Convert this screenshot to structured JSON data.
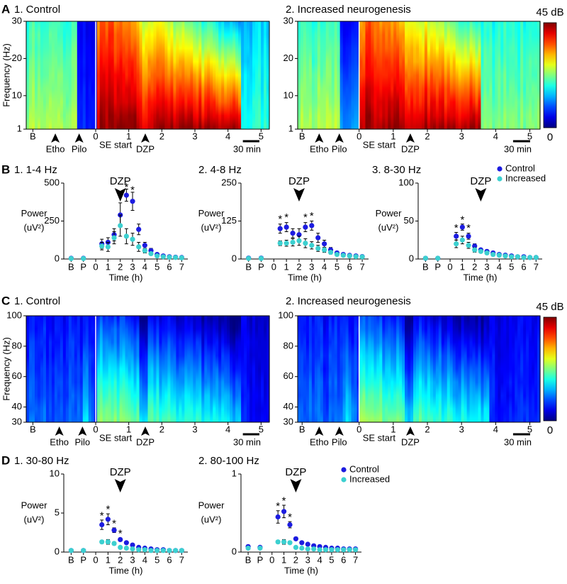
{
  "chart_data": [
    {
      "type": "spectrogram",
      "panel": "A",
      "title": "1. Control",
      "ylabel": "Frequency (Hz)",
      "ylim": [
        1,
        30
      ],
      "yticks": [
        1,
        10,
        20,
        30
      ],
      "xlim": [
        -2.1,
        5.25
      ],
      "xticks": [
        {
          "value": -1.9,
          "label": "B"
        },
        0,
        1,
        2,
        3,
        4,
        5
      ],
      "annotations": [
        {
          "text": "Etho",
          "x": -1.22
        },
        {
          "text": "Pilo",
          "x": -0.5
        },
        {
          "text": "DZP",
          "x": 1.5
        }
      ],
      "marker_label": "SE start",
      "scalebar": {
        "label": "30 min",
        "length": 0.5
      }
    },
    {
      "type": "spectrogram",
      "title": "2. Increased neurogenesis",
      "ylim": [
        1,
        30
      ],
      "yticks": [
        1,
        10,
        20,
        30
      ],
      "xlim": [
        -1.8,
        5.3
      ],
      "xticks": [
        {
          "value": -1.67,
          "label": "B"
        },
        0,
        1,
        2,
        3,
        4,
        5
      ],
      "annotations": [
        {
          "text": "Etho",
          "x": -1.17
        },
        {
          "text": "Pilo",
          "x": -0.58
        },
        {
          "text": "DZP",
          "x": 1.5
        }
      ],
      "marker_label": "SE start",
      "scalebar": {
        "label": "30 min",
        "length": 0.5
      },
      "colorbar": {
        "max_label": "45 dB",
        "min_label": "0"
      }
    },
    {
      "type": "errorbar",
      "panel": "B",
      "title": "1. 1-4 Hz",
      "ylabel": [
        "Power",
        "(uV²)"
      ],
      "xlabel": "Time (h)",
      "ylim": [
        0,
        500
      ],
      "yticks": [
        0,
        250,
        500
      ],
      "xlim": [
        -2.6,
        7.5
      ],
      "xticks": [
        {
          "value": -2,
          "label": "B"
        },
        {
          "value": -1,
          "label": "P"
        },
        0,
        1,
        2,
        3,
        4,
        5,
        6,
        7
      ],
      "x": [
        -2,
        -1,
        0.5,
        1,
        1.5,
        2,
        2.5,
        3,
        3.5,
        4,
        4.5,
        5,
        5.5,
        6,
        6.5,
        7
      ],
      "series": [
        {
          "color": "#1c1ce0",
          "values": [
            5,
            5,
            100,
            110,
            160,
            290,
            420,
            380,
            195,
            90,
            55,
            30,
            20,
            15,
            12,
            10
          ],
          "errors": [
            2,
            2,
            30,
            30,
            40,
            80,
            40,
            60,
            35,
            20,
            15,
            10,
            5,
            5,
            4,
            3
          ]
        },
        {
          "color": "#3cd0d0",
          "values": [
            3,
            3,
            85,
            80,
            140,
            220,
            150,
            130,
            80,
            55,
            35,
            20,
            15,
            12,
            10,
            8
          ],
          "errors": [
            2,
            2,
            25,
            30,
            40,
            70,
            50,
            40,
            30,
            15,
            10,
            6,
            5,
            4,
            3,
            3
          ]
        }
      ],
      "annotations": [
        {
          "text": "DZP",
          "x": 2
        },
        {
          "text": "*",
          "x": 2.5,
          "y": 470
        },
        {
          "text": "*",
          "x": 3,
          "y": 450
        }
      ]
    },
    {
      "type": "errorbar",
      "title": "2. 4-8 Hz",
      "ylabel": [
        "Power",
        "(uV²)"
      ],
      "xlabel": "Time (h)",
      "ylim": [
        0,
        250
      ],
      "yticks": [
        0,
        125,
        250
      ],
      "xlim": [
        -2.6,
        7.5
      ],
      "xticks": [
        {
          "value": -2,
          "label": "B"
        },
        {
          "value": -1,
          "label": "P"
        },
        0,
        1,
        2,
        3,
        4,
        5,
        6,
        7
      ],
      "x": [
        -2,
        -1,
        0.5,
        1,
        1.5,
        2,
        2.5,
        3,
        3.5,
        4,
        4.5,
        5,
        5.5,
        6,
        6.5,
        7
      ],
      "series": [
        {
          "color": "#1c1ce0",
          "values": [
            3,
            3,
            100,
            105,
            85,
            80,
            105,
            110,
            70,
            50,
            30,
            20,
            15,
            12,
            10,
            8
          ],
          "errors": [
            2,
            2,
            15,
            15,
            15,
            20,
            15,
            15,
            15,
            12,
            8,
            5,
            4,
            3,
            3,
            2
          ]
        },
        {
          "color": "#3cd0d0",
          "values": [
            2,
            2,
            52,
            52,
            55,
            60,
            52,
            45,
            35,
            30,
            22,
            15,
            12,
            10,
            8,
            7
          ],
          "errors": [
            1,
            1,
            8,
            10,
            12,
            15,
            15,
            12,
            10,
            8,
            6,
            4,
            3,
            3,
            2,
            2
          ]
        }
      ],
      "annotations": [
        {
          "text": "DZP",
          "x": 2
        },
        {
          "text": "*",
          "x": 0.5,
          "y": 130
        },
        {
          "text": "*",
          "x": 1,
          "y": 135
        },
        {
          "text": "*",
          "x": 2.5,
          "y": 135
        },
        {
          "text": "*",
          "x": 3,
          "y": 140
        }
      ]
    },
    {
      "type": "errorbar",
      "title": "3. 8-30 Hz",
      "ylabel": [
        "Power",
        "(uV²)"
      ],
      "xlabel": "Time (h)",
      "ylim": [
        0,
        100
      ],
      "yticks": [
        0,
        50,
        100
      ],
      "xlim": [
        -2.6,
        7.5
      ],
      "xticks": [
        {
          "value": -2,
          "label": "B"
        },
        {
          "value": -1,
          "label": "P"
        },
        0,
        1,
        2,
        3,
        4,
        5,
        6,
        7
      ],
      "x": [
        -2,
        -1,
        0.5,
        1,
        1.5,
        2,
        2.5,
        3,
        3.5,
        4,
        4.5,
        5,
        5.5,
        6,
        6.5,
        7
      ],
      "series": [
        {
          "name": "Control",
          "color": "#1c1ce0",
          "values": [
            1,
            1,
            30,
            42,
            30,
            17,
            12,
            10,
            8,
            6,
            5,
            4,
            3,
            3,
            2,
            2
          ],
          "errors": [
            1,
            1,
            5,
            4,
            4,
            3,
            2,
            2,
            2,
            1,
            1,
            1,
            1,
            1,
            1,
            1
          ]
        },
        {
          "name": "Increased",
          "color": "#3cd0d0",
          "values": [
            1,
            1,
            20,
            25,
            18,
            12,
            10,
            8,
            6,
            5,
            4,
            3,
            3,
            2,
            2,
            2
          ],
          "errors": [
            1,
            1,
            5,
            5,
            4,
            3,
            2,
            2,
            2,
            1,
            1,
            1,
            1,
            1,
            1,
            1
          ]
        }
      ],
      "annotations": [
        {
          "text": "DZP",
          "x": 2.5
        },
        {
          "text": "*",
          "x": 0.5,
          "y": 40
        },
        {
          "text": "*",
          "x": 1,
          "y": 51
        },
        {
          "text": "*",
          "x": 1.5,
          "y": 40
        }
      ]
    },
    {
      "type": "spectrogram",
      "panel": "C",
      "title": "1. Control",
      "ylabel": "Frequency (Hz)",
      "ylim": [
        30,
        100
      ],
      "yticks": [
        30,
        40,
        60,
        80,
        100
      ],
      "xlim": [
        -2.1,
        5.25
      ],
      "xticks": [
        {
          "value": -1.9,
          "label": "B"
        },
        0,
        1,
        2,
        3,
        4,
        5
      ],
      "annotations": [
        {
          "text": "Etho",
          "x": -1.1
        },
        {
          "text": "Pilo",
          "x": -0.4
        },
        {
          "text": "DZP",
          "x": 1.5
        }
      ],
      "marker_label": "SE start",
      "scalebar": {
        "label": "30 min",
        "length": 0.5
      }
    },
    {
      "type": "spectrogram",
      "title": "2. Increased neurogenesis",
      "ylim": [
        30,
        100
      ],
      "yticks": [
        30,
        40,
        60,
        80,
        100
      ],
      "xlim": [
        -1.8,
        5.3
      ],
      "xticks": [
        {
          "value": -1.67,
          "label": "B"
        },
        0,
        1,
        2,
        3,
        4,
        5
      ],
      "annotations": [
        {
          "text": "Etho",
          "x": -1.17
        },
        {
          "text": "Pilo",
          "x": -0.58
        },
        {
          "text": "DZP",
          "x": 1.5
        }
      ],
      "marker_label": "SE start",
      "scalebar": {
        "label": "30 min",
        "length": 0.5
      },
      "colorbar": {
        "max_label": "45 dB",
        "min_label": "0"
      }
    },
    {
      "type": "errorbar",
      "panel": "D",
      "title": "1. 30-80 Hz",
      "ylabel": [
        "Power",
        "(uV²)"
      ],
      "xlabel": "Time (h)",
      "ylim": [
        0,
        10
      ],
      "yticks": [
        0,
        5,
        10
      ],
      "xlim": [
        -2.6,
        7.5
      ],
      "xticks": [
        {
          "value": -2,
          "label": "B"
        },
        {
          "value": -1,
          "label": "P"
        },
        0,
        1,
        2,
        3,
        4,
        5,
        6,
        7
      ],
      "x": [
        -2,
        -1,
        0.5,
        1,
        1.5,
        2,
        2.5,
        3,
        3.5,
        4,
        4.5,
        5,
        5.5,
        6,
        6.5,
        7
      ],
      "series": [
        {
          "color": "#1c1ce0",
          "values": [
            0.2,
            0.2,
            3.5,
            4.2,
            2.8,
            1.6,
            1.2,
            0.9,
            0.6,
            0.5,
            0.4,
            0.3,
            0.3,
            0.2,
            0.2,
            0.2
          ],
          "errors": [
            0.1,
            0.1,
            0.6,
            0.7,
            0.3,
            0.2,
            0.1,
            0.1,
            0.1,
            0.1,
            0.1,
            0.1,
            0.1,
            0.1,
            0.1,
            0.1
          ]
        },
        {
          "color": "#3cd0d0",
          "values": [
            0.2,
            0.2,
            1.3,
            1.3,
            1.1,
            0.6,
            0.5,
            0.4,
            0.3,
            0.3,
            0.2,
            0.2,
            0.2,
            0.2,
            0.2,
            0.2
          ],
          "errors": [
            0.1,
            0.1,
            0.2,
            0.3,
            0.2,
            0.1,
            0.1,
            0.1,
            0.1,
            0.1,
            0.1,
            0.1,
            0.1,
            0.1,
            0.1,
            0.1
          ]
        }
      ],
      "annotations": [
        {
          "text": "DZP",
          "x": 2
        },
        {
          "text": "*",
          "x": 0.5,
          "y": 4.6
        },
        {
          "text": "*",
          "x": 1,
          "y": 5.4
        },
        {
          "text": "*",
          "x": 1.5,
          "y": 3.6
        },
        {
          "text": "*",
          "x": 2,
          "y": 2.3
        }
      ]
    },
    {
      "type": "errorbar",
      "title": "2. 80-100 Hz",
      "ylabel": [
        "Power",
        "(uV²)"
      ],
      "xlabel": "Time (h)",
      "ylim": [
        0,
        1
      ],
      "yticks": [
        0,
        1
      ],
      "xlim": [
        -2.6,
        7.5
      ],
      "xticks": [
        {
          "value": -2,
          "label": "B"
        },
        {
          "value": -1,
          "label": "P"
        },
        0,
        1,
        2,
        3,
        4,
        5,
        6,
        7
      ],
      "x": [
        -2,
        -1,
        0.5,
        1,
        1.5,
        2,
        2.5,
        3,
        3.5,
        4,
        4.5,
        5,
        5.5,
        6,
        6.5,
        7
      ],
      "series": [
        {
          "name": "Control",
          "color": "#1c1ce0",
          "values": [
            0.07,
            0.06,
            0.45,
            0.52,
            0.35,
            0.17,
            0.12,
            0.1,
            0.08,
            0.07,
            0.06,
            0.05,
            0.05,
            0.04,
            0.04,
            0.04
          ],
          "errors": [
            0.02,
            0.02,
            0.08,
            0.08,
            0.04,
            0.02,
            0.01,
            0.01,
            0.01,
            0.01,
            0.01,
            0.01,
            0.01,
            0.01,
            0.01,
            0.01
          ]
        },
        {
          "name": "Increased",
          "color": "#3cd0d0",
          "values": [
            0.05,
            0.05,
            0.13,
            0.13,
            0.12,
            0.06,
            0.05,
            0.04,
            0.04,
            0.03,
            0.03,
            0.03,
            0.03,
            0.03,
            0.03,
            0.03
          ],
          "errors": [
            0.01,
            0.01,
            0.02,
            0.03,
            0.02,
            0.01,
            0.01,
            0.01,
            0.01,
            0.01,
            0.01,
            0.01,
            0.01,
            0.01,
            0.01,
            0.01
          ]
        }
      ],
      "annotations": [
        {
          "text": "DZP",
          "x": 2
        },
        {
          "text": "*",
          "x": 0.5,
          "y": 0.58
        },
        {
          "text": "*",
          "x": 1,
          "y": 0.65
        },
        {
          "text": "*",
          "x": 1.5,
          "y": 0.44
        }
      ]
    }
  ]
}
